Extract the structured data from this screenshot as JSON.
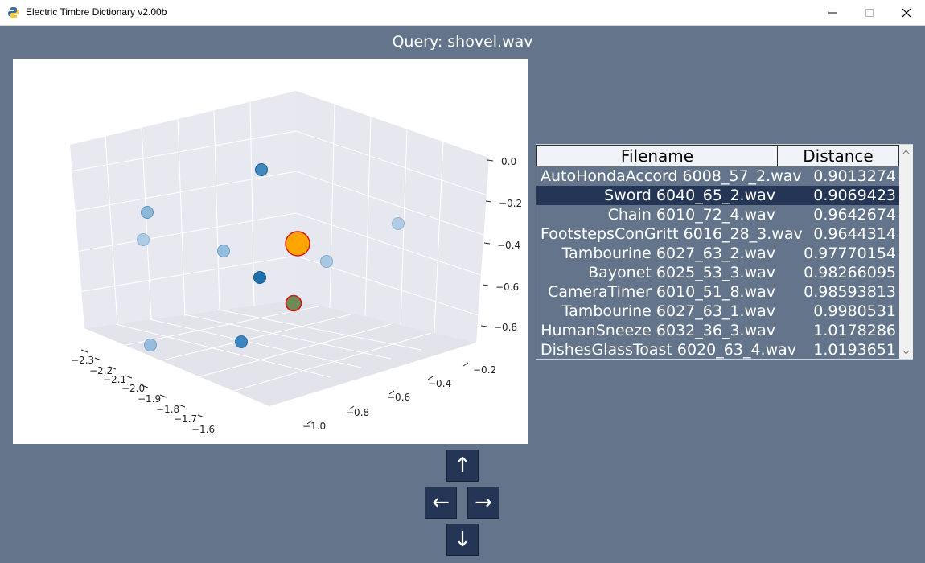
{
  "window": {
    "title": "Electric Timbre Dictionary v2.00b",
    "controls": [
      "minimize-icon",
      "maximize-icon",
      "close-icon"
    ]
  },
  "query": {
    "title": "Query: shovel.wav"
  },
  "plot": {
    "type": "scatter-3d",
    "x_ticks": [
      "−2.3",
      "−2.2",
      "−2.1",
      "−2.0",
      "−1.9",
      "−1.8",
      "−1.7",
      "−1.6"
    ],
    "y_ticks": [
      "−0.2",
      "−0.4",
      "−0.6",
      "−0.8",
      "−1.0"
    ],
    "z_ticks": [
      "0.0",
      "−0.2",
      "−0.4",
      "−0.6",
      "−0.8"
    ],
    "colors": {
      "point": "#2878b5",
      "query": "#ffa500",
      "query_edge": "#dd1111",
      "highlight_edge": "#dd1111"
    }
  },
  "results": {
    "columns": {
      "filename": "Filename",
      "distance": "Distance"
    },
    "rows": [
      {
        "filename": "AutoHondaAccord 6008_57_2.wav",
        "distance": "0.9013274"
      },
      {
        "filename": "Sword 6040_65_2.wav",
        "distance": "0.9069423",
        "selected": true
      },
      {
        "filename": "Chain 6010_72_4.wav",
        "distance": "0.9642674"
      },
      {
        "filename": "FootstepsConGritt 6016_28_3.wav",
        "distance": "0.9644314"
      },
      {
        "filename": "Tambourine 6027_63_2.wav",
        "distance": "0.97770154"
      },
      {
        "filename": "Bayonet 6025_53_3.wav",
        "distance": "0.98266095"
      },
      {
        "filename": "CameraTimer 6010_51_8.wav",
        "distance": "0.98593813"
      },
      {
        "filename": "Tambourine 6027_63_1.wav",
        "distance": "0.9980531"
      },
      {
        "filename": "HumanSneeze 6032_36_3.wav",
        "distance": "1.0178286"
      },
      {
        "filename": "DishesGlassToast 6020_63_4.wav",
        "distance": "1.0193651"
      }
    ],
    "selected_color": "#243556"
  },
  "navigation": {
    "up": "↑",
    "left": "←",
    "right": "→",
    "down": "↓"
  }
}
